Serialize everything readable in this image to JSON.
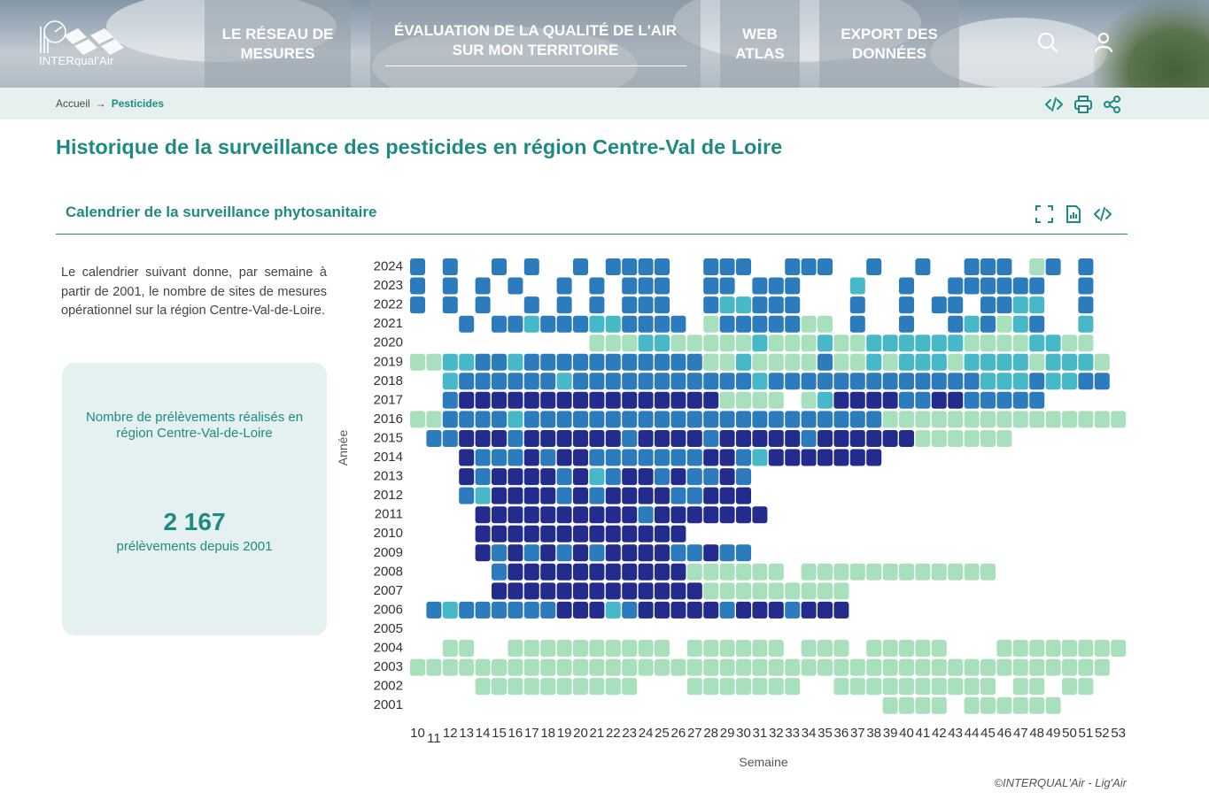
{
  "header": {
    "logo_text": "INTERqual'Air",
    "nav": [
      {
        "line1": "LE RÉSEAU DE",
        "line2": "MESURES"
      },
      {
        "line1": "ÉVALUATION DE LA QUALITÉ DE L'AIR",
        "line2": "SUR MON TERRITOIRE"
      },
      {
        "line1": "WEB",
        "line2": "ATLAS"
      },
      {
        "line1": "EXPORT DES",
        "line2": "DONNÉES"
      }
    ],
    "icons": [
      "search-icon",
      "user-icon"
    ]
  },
  "breadcrumb": {
    "home": "Accueil",
    "current": "Pesticides"
  },
  "page_title": "Historique de la surveillance des pesticides en région Centre-Val de Loire",
  "section": {
    "title": "Calendrier de la surveillance phytosanitaire"
  },
  "description": "Le calendrier suivant donne, par semaine à partir de 2001, le nombre de sites de mesures opérationnel sur la région Centre-Val-de-Loire.",
  "stat_card": {
    "label": "Nombre de prélèvements réalisés en région Centre-Val-de-Loire",
    "value": "2 167",
    "sub": "prélèvements depuis 2001"
  },
  "copyright": "©INTERQUAL'Air - Lig'Air",
  "colors": {
    "accent": "#1f8a84",
    "c1": "#a8dfbd",
    "c2": "#46b8c7",
    "c3": "#2b7bbd",
    "c4": "#232c8c"
  },
  "chart_data": {
    "type": "heatmap",
    "xlabel": "Semaine",
    "ylabel": "Année",
    "x": [
      10,
      11,
      12,
      13,
      14,
      15,
      16,
      17,
      18,
      19,
      20,
      21,
      22,
      23,
      24,
      25,
      26,
      27,
      28,
      29,
      30,
      31,
      32,
      33,
      34,
      35,
      36,
      37,
      38,
      39,
      40,
      41,
      42,
      43,
      44,
      45,
      46,
      47,
      48,
      49,
      50,
      51,
      52,
      53
    ],
    "years": [
      2024,
      2023,
      2022,
      2021,
      2020,
      2019,
      2018,
      2017,
      2016,
      2015,
      2014,
      2013,
      2012,
      2011,
      2010,
      2009,
      2008,
      2007,
      2006,
      2005,
      2004,
      2003,
      2002,
      2001
    ],
    "value_levels": "0 = aucun prélèvement, 1 = 1 site, 2 = 2 sites, 3 = 3 sites, 4 = 4 sites ou plus (classes estimées d'après la couleur)",
    "values": [
      [
        3,
        0,
        3,
        0,
        0,
        3,
        0,
        3,
        0,
        0,
        3,
        0,
        3,
        3,
        3,
        3,
        0,
        0,
        3,
        3,
        3,
        0,
        0,
        3,
        3,
        3,
        0,
        0,
        3,
        0,
        0,
        3,
        0,
        0,
        3,
        3,
        3,
        0,
        1,
        3,
        0,
        3,
        0,
        0
      ],
      [
        3,
        0,
        3,
        0,
        3,
        0,
        3,
        0,
        0,
        3,
        0,
        3,
        0,
        3,
        3,
        3,
        0,
        0,
        3,
        3,
        0,
        3,
        3,
        3,
        0,
        0,
        0,
        2,
        0,
        0,
        3,
        0,
        0,
        3,
        3,
        3,
        3,
        3,
        3,
        0,
        0,
        3,
        0,
        0
      ],
      [
        3,
        0,
        3,
        0,
        3,
        0,
        0,
        3,
        0,
        3,
        0,
        3,
        0,
        3,
        3,
        3,
        0,
        0,
        3,
        2,
        2,
        3,
        3,
        3,
        0,
        0,
        0,
        3,
        0,
        0,
        3,
        0,
        3,
        3,
        0,
        3,
        3,
        2,
        2,
        0,
        0,
        3,
        0,
        0
      ],
      [
        0,
        0,
        0,
        3,
        0,
        3,
        3,
        2,
        3,
        3,
        3,
        2,
        2,
        3,
        3,
        3,
        3,
        0,
        1,
        3,
        3,
        3,
        3,
        3,
        1,
        1,
        0,
        3,
        0,
        0,
        3,
        0,
        0,
        3,
        2,
        3,
        1,
        2,
        3,
        0,
        0,
        2,
        0,
        0
      ],
      [
        0,
        0,
        0,
        0,
        0,
        0,
        0,
        0,
        0,
        0,
        0,
        1,
        1,
        1,
        2,
        2,
        1,
        1,
        1,
        1,
        1,
        2,
        1,
        1,
        1,
        2,
        1,
        1,
        2,
        2,
        2,
        2,
        2,
        2,
        1,
        1,
        1,
        1,
        2,
        2,
        1,
        1,
        0,
        0
      ],
      [
        1,
        1,
        2,
        2,
        3,
        3,
        2,
        3,
        3,
        3,
        3,
        3,
        3,
        3,
        3,
        3,
        3,
        3,
        1,
        1,
        2,
        1,
        1,
        1,
        1,
        3,
        1,
        1,
        2,
        1,
        2,
        2,
        2,
        1,
        2,
        2,
        2,
        2,
        1,
        2,
        2,
        2,
        1,
        0
      ],
      [
        0,
        0,
        2,
        3,
        3,
        3,
        3,
        3,
        3,
        2,
        3,
        3,
        3,
        3,
        3,
        3,
        3,
        3,
        3,
        3,
        3,
        2,
        3,
        3,
        3,
        3,
        3,
        3,
        3,
        3,
        3,
        3,
        3,
        3,
        3,
        2,
        2,
        2,
        3,
        2,
        2,
        3,
        3,
        0
      ],
      [
        0,
        0,
        3,
        4,
        4,
        4,
        4,
        4,
        4,
        4,
        4,
        4,
        4,
        4,
        4,
        4,
        4,
        4,
        4,
        1,
        1,
        1,
        1,
        0,
        1,
        2,
        4,
        4,
        4,
        4,
        3,
        3,
        4,
        4,
        3,
        3,
        3,
        3,
        3,
        0,
        0,
        0,
        0,
        0
      ],
      [
        1,
        1,
        3,
        3,
        3,
        3,
        2,
        3,
        3,
        3,
        3,
        3,
        3,
        3,
        3,
        3,
        3,
        3,
        3,
        3,
        3,
        3,
        3,
        3,
        3,
        3,
        3,
        3,
        3,
        1,
        1,
        1,
        1,
        1,
        1,
        1,
        1,
        1,
        1,
        1,
        1,
        1,
        1,
        1
      ],
      [
        0,
        3,
        3,
        4,
        4,
        4,
        3,
        4,
        4,
        4,
        4,
        4,
        4,
        3,
        4,
        4,
        4,
        4,
        3,
        4,
        4,
        4,
        4,
        4,
        3,
        4,
        4,
        4,
        4,
        4,
        4,
        1,
        1,
        1,
        1,
        1,
        1,
        0,
        0,
        0,
        0,
        0,
        0,
        0
      ],
      [
        0,
        0,
        0,
        4,
        3,
        3,
        3,
        4,
        3,
        4,
        4,
        3,
        3,
        3,
        3,
        3,
        3,
        3,
        4,
        4,
        3,
        2,
        4,
        4,
        4,
        4,
        4,
        4,
        4,
        0,
        0,
        0,
        0,
        0,
        0,
        0,
        0,
        0,
        0,
        0,
        0,
        0,
        0,
        0
      ],
      [
        0,
        0,
        0,
        4,
        3,
        4,
        4,
        4,
        4,
        3,
        4,
        2,
        3,
        4,
        4,
        3,
        4,
        3,
        3,
        4,
        3,
        0,
        0,
        0,
        0,
        0,
        0,
        0,
        0,
        0,
        0,
        0,
        0,
        0,
        0,
        0,
        0,
        0,
        0,
        0,
        0,
        0,
        0,
        0
      ],
      [
        0,
        0,
        0,
        3,
        2,
        4,
        4,
        4,
        4,
        3,
        4,
        3,
        4,
        4,
        4,
        4,
        3,
        3,
        4,
        4,
        4,
        0,
        0,
        0,
        0,
        0,
        0,
        0,
        0,
        0,
        0,
        0,
        0,
        0,
        0,
        0,
        0,
        0,
        0,
        0,
        0,
        0,
        0,
        0
      ],
      [
        0,
        0,
        0,
        0,
        4,
        4,
        4,
        4,
        4,
        4,
        4,
        4,
        4,
        4,
        3,
        4,
        4,
        4,
        4,
        4,
        4,
        4,
        0,
        0,
        0,
        0,
        0,
        0,
        0,
        0,
        0,
        0,
        0,
        0,
        0,
        0,
        0,
        0,
        0,
        0,
        0,
        0,
        0,
        0
      ],
      [
        0,
        0,
        0,
        0,
        4,
        4,
        4,
        4,
        4,
        4,
        4,
        4,
        4,
        4,
        4,
        4,
        4,
        0,
        0,
        0,
        0,
        0,
        0,
        0,
        0,
        0,
        0,
        0,
        0,
        0,
        0,
        0,
        0,
        0,
        0,
        0,
        0,
        0,
        0,
        0,
        0,
        0,
        0,
        0
      ],
      [
        0,
        0,
        0,
        0,
        4,
        3,
        4,
        3,
        4,
        3,
        4,
        3,
        4,
        4,
        4,
        4,
        3,
        3,
        4,
        3,
        3,
        0,
        0,
        0,
        0,
        0,
        0,
        0,
        0,
        0,
        0,
        0,
        0,
        0,
        0,
        0,
        0,
        0,
        0,
        0,
        0,
        0,
        0,
        0
      ],
      [
        0,
        0,
        0,
        0,
        0,
        3,
        4,
        4,
        4,
        4,
        4,
        4,
        4,
        4,
        4,
        4,
        4,
        1,
        1,
        1,
        1,
        1,
        1,
        0,
        1,
        1,
        1,
        1,
        1,
        1,
        1,
        1,
        1,
        1,
        1,
        1,
        0,
        0,
        0,
        0,
        0,
        0,
        0,
        0
      ],
      [
        0,
        0,
        0,
        0,
        0,
        4,
        4,
        4,
        4,
        4,
        4,
        4,
        4,
        4,
        4,
        4,
        4,
        4,
        1,
        1,
        1,
        1,
        1,
        1,
        1,
        1,
        1,
        0,
        0,
        0,
        0,
        0,
        0,
        0,
        0,
        0,
        0,
        0,
        0,
        0,
        0,
        0,
        0,
        0
      ],
      [
        0,
        3,
        2,
        3,
        3,
        3,
        3,
        3,
        3,
        4,
        4,
        4,
        2,
        3,
        4,
        4,
        4,
        4,
        4,
        3,
        4,
        4,
        4,
        3,
        4,
        4,
        4,
        0,
        0,
        0,
        0,
        0,
        0,
        0,
        0,
        0,
        0,
        0,
        0,
        0,
        0,
        0,
        0,
        0
      ],
      [
        0,
        0,
        0,
        0,
        0,
        0,
        0,
        0,
        0,
        0,
        0,
        0,
        0,
        0,
        0,
        0,
        0,
        0,
        0,
        0,
        0,
        0,
        0,
        0,
        0,
        0,
        0,
        0,
        0,
        0,
        0,
        0,
        0,
        0,
        0,
        0,
        0,
        0,
        0,
        0,
        0,
        0,
        0,
        0
      ],
      [
        0,
        0,
        1,
        1,
        0,
        0,
        1,
        1,
        1,
        1,
        1,
        1,
        1,
        1,
        1,
        1,
        0,
        1,
        1,
        1,
        1,
        1,
        1,
        0,
        1,
        1,
        1,
        0,
        1,
        1,
        1,
        1,
        1,
        0,
        0,
        0,
        1,
        1,
        1,
        1,
        1,
        1,
        1,
        1
      ],
      [
        1,
        1,
        1,
        1,
        1,
        1,
        1,
        1,
        1,
        1,
        1,
        1,
        1,
        1,
        1,
        1,
        1,
        1,
        1,
        1,
        1,
        1,
        1,
        1,
        1,
        1,
        1,
        1,
        1,
        1,
        1,
        1,
        1,
        1,
        1,
        1,
        1,
        1,
        1,
        1,
        1,
        1,
        1,
        0
      ],
      [
        0,
        0,
        0,
        0,
        1,
        1,
        1,
        1,
        1,
        1,
        1,
        1,
        1,
        1,
        0,
        0,
        0,
        1,
        1,
        1,
        1,
        1,
        1,
        1,
        0,
        0,
        1,
        1,
        1,
        1,
        1,
        1,
        1,
        1,
        1,
        1,
        0,
        1,
        1,
        0,
        1,
        1,
        0,
        0
      ],
      [
        0,
        0,
        0,
        0,
        0,
        0,
        0,
        0,
        0,
        0,
        0,
        0,
        0,
        0,
        0,
        0,
        0,
        0,
        0,
        0,
        0,
        0,
        0,
        0,
        0,
        0,
        0,
        0,
        0,
        1,
        1,
        1,
        1,
        0,
        1,
        1,
        1,
        1,
        1,
        1,
        0,
        0,
        0,
        0
      ]
    ]
  }
}
